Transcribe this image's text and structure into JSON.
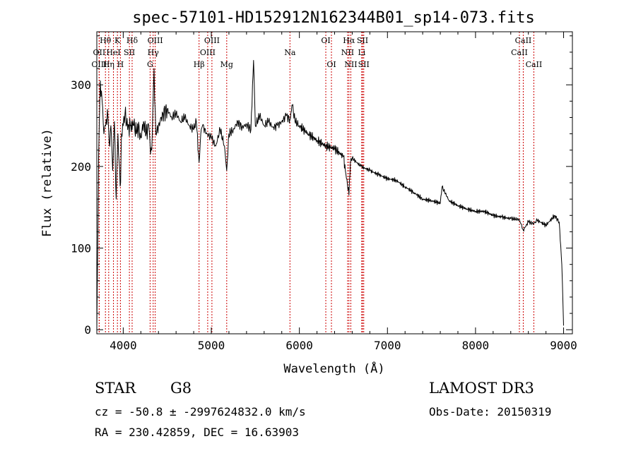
{
  "chart_data": {
    "type": "line",
    "title": "spec-57101-HD152912N162344B01_sp14-073.fits",
    "xlabel": "Wavelength (Å)",
    "ylabel": "Flux (relative)",
    "xlim": [
      3700,
      9100
    ],
    "ylim": [
      -5,
      365
    ],
    "x_ticks": [
      4000,
      5000,
      6000,
      7000,
      8000,
      9000
    ],
    "y_ticks": [
      0,
      100,
      200,
      300
    ],
    "grid": false,
    "line_color": "#000000",
    "marker_color": "#cc0000",
    "spectrum": {
      "x": [
        3700,
        3720,
        3740,
        3760,
        3780,
        3800,
        3820,
        3840,
        3860,
        3880,
        3900,
        3920,
        3940,
        3960,
        3970,
        3980,
        4000,
        4020,
        4050,
        4080,
        4101,
        4120,
        4150,
        4180,
        4200,
        4230,
        4260,
        4290,
        4310,
        4330,
        4350,
        4370,
        4400,
        4450,
        4500,
        4550,
        4600,
        4650,
        4700,
        4750,
        4800,
        4830,
        4861,
        4880,
        4900,
        4950,
        5000,
        5050,
        5100,
        5150,
        5175,
        5200,
        5250,
        5300,
        5350,
        5400,
        5450,
        5480,
        5500,
        5550,
        5600,
        5650,
        5700,
        5750,
        5800,
        5850,
        5893,
        5920,
        5950,
        6000,
        6100,
        6200,
        6300,
        6400,
        6500,
        6563,
        6580,
        6600,
        6700,
        6800,
        6900,
        7000,
        7100,
        7200,
        7300,
        7400,
        7500,
        7600,
        7620,
        7700,
        7800,
        7900,
        8000,
        8100,
        8200,
        8300,
        8400,
        8498,
        8542,
        8600,
        8662,
        8700,
        8800,
        8900,
        8950,
        8980,
        9000
      ],
      "y": [
        0,
        210,
        305,
        280,
        240,
        250,
        270,
        230,
        250,
        195,
        255,
        160,
        240,
        195,
        180,
        240,
        250,
        265,
        245,
        250,
        245,
        250,
        240,
        250,
        235,
        255,
        240,
        250,
        215,
        240,
        320,
        240,
        250,
        265,
        270,
        260,
        265,
        255,
        260,
        250,
        245,
        255,
        205,
        240,
        250,
        240,
        235,
        225,
        245,
        225,
        195,
        240,
        245,
        255,
        248,
        252,
        245,
        330,
        250,
        262,
        250,
        255,
        248,
        250,
        255,
        262,
        258,
        275,
        255,
        250,
        240,
        232,
        225,
        222,
        212,
        165,
        205,
        210,
        200,
        195,
        190,
        185,
        183,
        175,
        168,
        160,
        158,
        155,
        175,
        158,
        152,
        148,
        145,
        145,
        140,
        138,
        136,
        135,
        122,
        132,
        130,
        134,
        128,
        140,
        132,
        80,
        5
      ]
    },
    "lines": [
      {
        "label": "Hθ",
        "x": 3798,
        "row": 1
      },
      {
        "label": "OII",
        "x": 3727,
        "row": 2
      },
      {
        "label": "OIII",
        "x": 3727,
        "row": 3
      },
      {
        "label": "Hη",
        "x": 3835,
        "row": 3
      },
      {
        "label": "HeI",
        "x": 3889,
        "row": 2
      },
      {
        "label": "K",
        "x": 3934,
        "row": 1
      },
      {
        "label": "H",
        "x": 3968,
        "row": 3
      },
      {
        "label": "SII",
        "x": 4070,
        "row": 2
      },
      {
        "label": "Hδ",
        "x": 4101,
        "row": 1
      },
      {
        "label": "G",
        "x": 4305,
        "row": 3
      },
      {
        "label": "Hγ",
        "x": 4340,
        "row": 2
      },
      {
        "label": "OIII",
        "x": 4363,
        "row": 1
      },
      {
        "label": "Hβ",
        "x": 4861,
        "row": 3
      },
      {
        "label": "OIII",
        "x": 4959,
        "row": 2
      },
      {
        "label": "OIII",
        "x": 5007,
        "row": 1
      },
      {
        "label": "Mg",
        "x": 5175,
        "row": 3
      },
      {
        "label": "Na",
        "x": 5893,
        "row": 2
      },
      {
        "label": "OI",
        "x": 6300,
        "row": 1
      },
      {
        "label": "OI",
        "x": 6364,
        "row": 3
      },
      {
        "label": "NII",
        "x": 6548,
        "row": 2
      },
      {
        "label": "Hα",
        "x": 6563,
        "row": 1
      },
      {
        "label": "NII",
        "x": 6584,
        "row": 3
      },
      {
        "label": "Li",
        "x": 6708,
        "row": 2
      },
      {
        "label": "SII",
        "x": 6717,
        "row": 1
      },
      {
        "label": "SII",
        "x": 6731,
        "row": 3
      },
      {
        "label": "CaII",
        "x": 8498,
        "row": 2
      },
      {
        "label": "CaII",
        "x": 8542,
        "row": 1
      },
      {
        "label": "CaII",
        "x": 8662,
        "row": 3
      }
    ]
  },
  "info": {
    "class_label": "STAR",
    "subclass": "G8",
    "survey": "LAMOST DR3",
    "cz_line": "cz = -50.8 ± -2997624832.0 km/s",
    "obs_date": "Obs-Date: 20150319",
    "radec": "RA = 230.42859, DEC =  16.63903"
  }
}
